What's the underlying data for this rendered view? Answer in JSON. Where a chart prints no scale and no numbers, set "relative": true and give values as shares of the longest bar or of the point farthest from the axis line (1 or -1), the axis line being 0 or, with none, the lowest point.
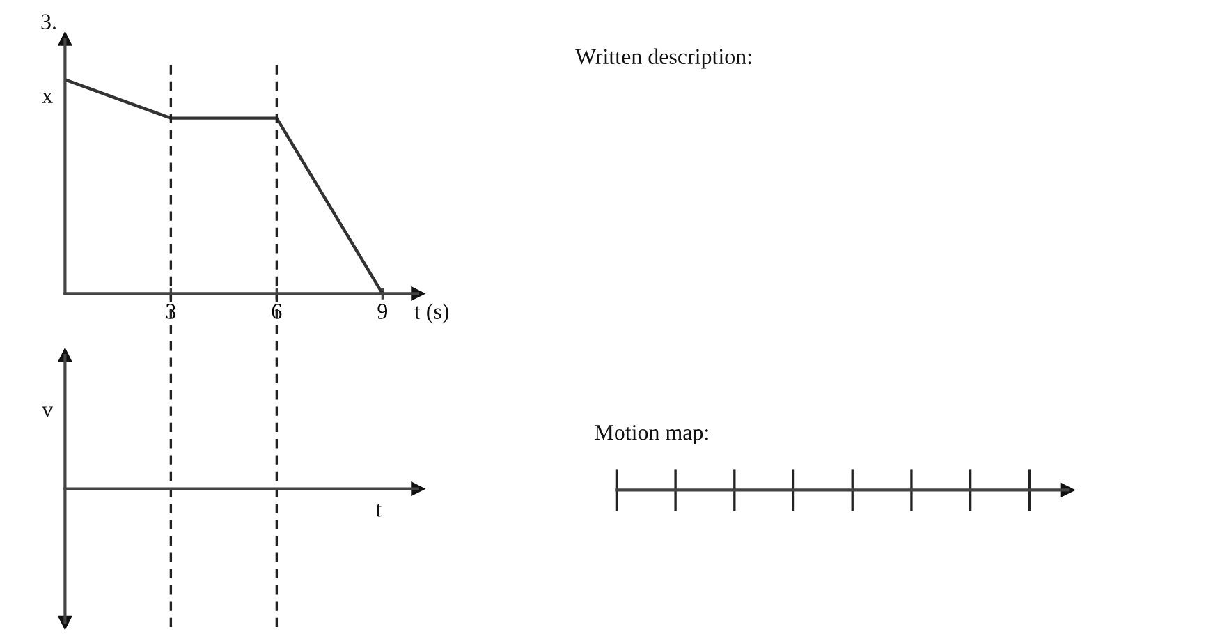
{
  "chart_data": [
    {
      "type": "line",
      "title": "3.",
      "xlabel": "t (s)",
      "ylabel": "x",
      "relative": true,
      "x": [
        0,
        3,
        6,
        9
      ],
      "values": [
        1,
        0.82,
        0.82,
        0
      ],
      "color": "#333333",
      "xlim": [
        0,
        10
      ],
      "xticks": [
        3,
        6,
        9
      ],
      "ref_lines": [
        {
          "axis": "x",
          "value": 3,
          "color": "#222222",
          "line_style": "dashed"
        },
        {
          "axis": "x",
          "value": 6,
          "color": "#222222",
          "line_style": "dashed"
        }
      ]
    },
    {
      "type": "other",
      "xlabel": "t",
      "ylabel": "v"
    },
    {
      "type": "other",
      "title": "Written description:"
    },
    {
      "type": "other",
      "title": "Motion map:",
      "categories": [
        null,
        null,
        null,
        null,
        null,
        null,
        null,
        null
      ]
    }
  ]
}
